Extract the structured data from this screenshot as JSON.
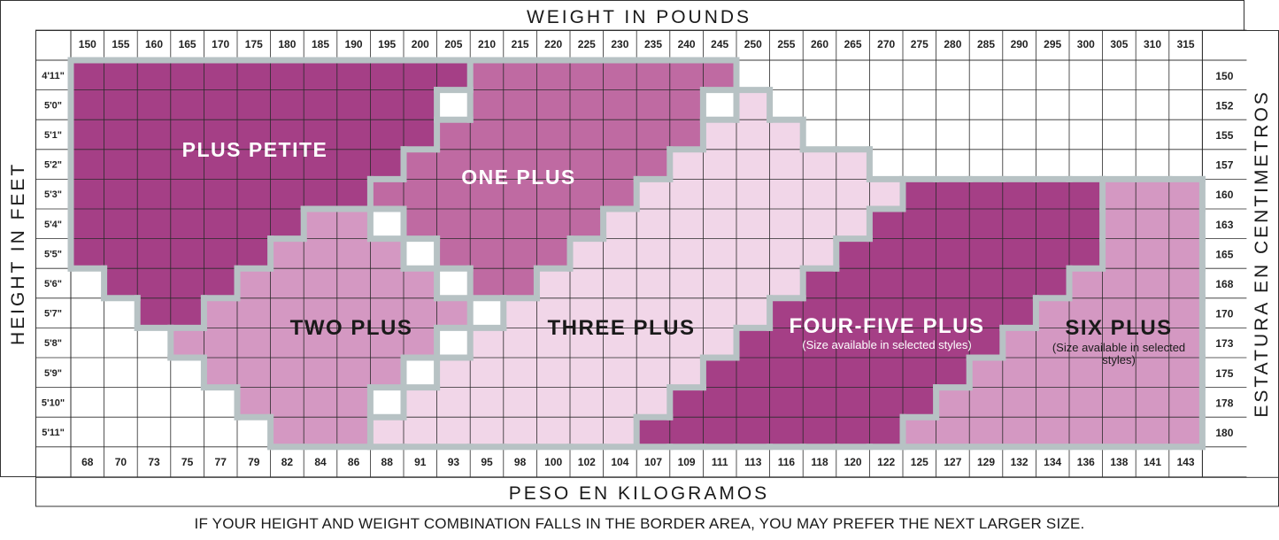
{
  "chart_data": {
    "type": "heatmap",
    "title": "WEIGHT IN POUNDS",
    "xlabel": "WEIGHT IN POUNDS",
    "xlabel_secondary": "PESO EN KILOGRAMOS",
    "ylabel": "HEIGHT IN FEET",
    "ylabel_secondary": "ESTATURA EN CENTIMETROS",
    "x_pounds": [
      "150",
      "155",
      "160",
      "165",
      "170",
      "175",
      "180",
      "185",
      "190",
      "195",
      "200",
      "205",
      "210",
      "215",
      "220",
      "225",
      "230",
      "235",
      "240",
      "245",
      "250",
      "255",
      "260",
      "265",
      "270",
      "275",
      "280",
      "285",
      "290",
      "295",
      "300",
      "305",
      "310",
      "315"
    ],
    "x_kilograms": [
      "68",
      "70",
      "73",
      "75",
      "77",
      "79",
      "82",
      "84",
      "86",
      "88",
      "91",
      "93",
      "95",
      "98",
      "100",
      "102",
      "104",
      "107",
      "109",
      "111",
      "113",
      "116",
      "118",
      "120",
      "122",
      "125",
      "127",
      "129",
      "132",
      "134",
      "136",
      "138",
      "141",
      "143"
    ],
    "y_feet": [
      "4'11\"",
      "5'0\"",
      "5'1\"",
      "5'2\"",
      "5'3\"",
      "5'4\"",
      "5'5\"",
      "5'6\"",
      "5'7\"",
      "5'8\"",
      "5'9\"",
      "5'10\"",
      "5'11\""
    ],
    "y_centimeters": [
      "150",
      "152",
      "155",
      "157",
      "160",
      "163",
      "165",
      "168",
      "170",
      "173",
      "175",
      "178",
      "180"
    ],
    "sizes": [
      {
        "name": "PLUS PETITE",
        "note": "",
        "color": "#a53f86",
        "ranges": [
          [
            1,
            12
          ],
          [
            1,
            11
          ],
          [
            1,
            11
          ],
          [
            1,
            10
          ],
          [
            1,
            9
          ],
          [
            1,
            7
          ],
          [
            1,
            6
          ],
          [
            2,
            6
          ],
          [
            3,
            5
          ],
          [],
          [],
          [],
          []
        ]
      },
      {
        "name": "ONE PLUS",
        "note": "",
        "color": "#bf6aa2",
        "ranges": [
          [
            13,
            20
          ],
          [
            13,
            19
          ],
          [
            12,
            19
          ],
          [
            11,
            18
          ],
          [
            10,
            17
          ],
          [
            11,
            16
          ],
          [
            12,
            15
          ],
          [
            13,
            14
          ],
          [],
          [],
          [],
          [],
          []
        ]
      },
      {
        "name": "TWO PLUS",
        "note": "",
        "color": "#d498c2",
        "ranges": [
          [],
          [],
          [],
          [],
          [],
          [
            8,
            9
          ],
          [
            7,
            10
          ],
          [
            6,
            11
          ],
          [
            5,
            12
          ],
          [
            4,
            11
          ],
          [
            5,
            10
          ],
          [
            6,
            9
          ],
          [
            7,
            9
          ]
        ]
      },
      {
        "name": "THREE PLUS",
        "note": "",
        "color": "#f1d6e8",
        "ranges": [
          [],
          [
            21,
            21
          ],
          [
            20,
            22
          ],
          [
            19,
            24
          ],
          [
            18,
            25
          ],
          [
            17,
            24
          ],
          [
            16,
            23
          ],
          [
            15,
            22
          ],
          [
            14,
            21
          ],
          [
            13,
            20
          ],
          [
            12,
            19
          ],
          [
            11,
            18
          ],
          [
            10,
            17
          ]
        ]
      },
      {
        "name": "FOUR-FIVE PLUS",
        "note": "(Size available in selected styles)",
        "color": "#a53f86",
        "ranges": [
          [],
          [],
          [],
          [],
          [
            26,
            31
          ],
          [
            25,
            31
          ],
          [
            24,
            31
          ],
          [
            23,
            30
          ],
          [
            22,
            29
          ],
          [
            21,
            28
          ],
          [
            20,
            27
          ],
          [
            19,
            26
          ],
          [
            18,
            25
          ]
        ]
      },
      {
        "name": "SIX PLUS",
        "note": "(Size available in selected styles)",
        "color": "#d498c2",
        "ranges": [
          [],
          [],
          [],
          [],
          [
            32,
            34
          ],
          [
            32,
            34
          ],
          [
            32,
            34
          ],
          [
            31,
            34
          ],
          [
            30,
            34
          ],
          [
            29,
            34
          ],
          [
            28,
            34
          ],
          [
            27,
            34
          ],
          [
            26,
            34
          ]
        ]
      }
    ],
    "border_color": "#b7c2c4",
    "grid": true
  },
  "footnote": "IF YOUR HEIGHT AND WEIGHT COMBINATION FALLS IN THE BORDER AREA, YOU MAY PREFER THE NEXT LARGER SIZE."
}
